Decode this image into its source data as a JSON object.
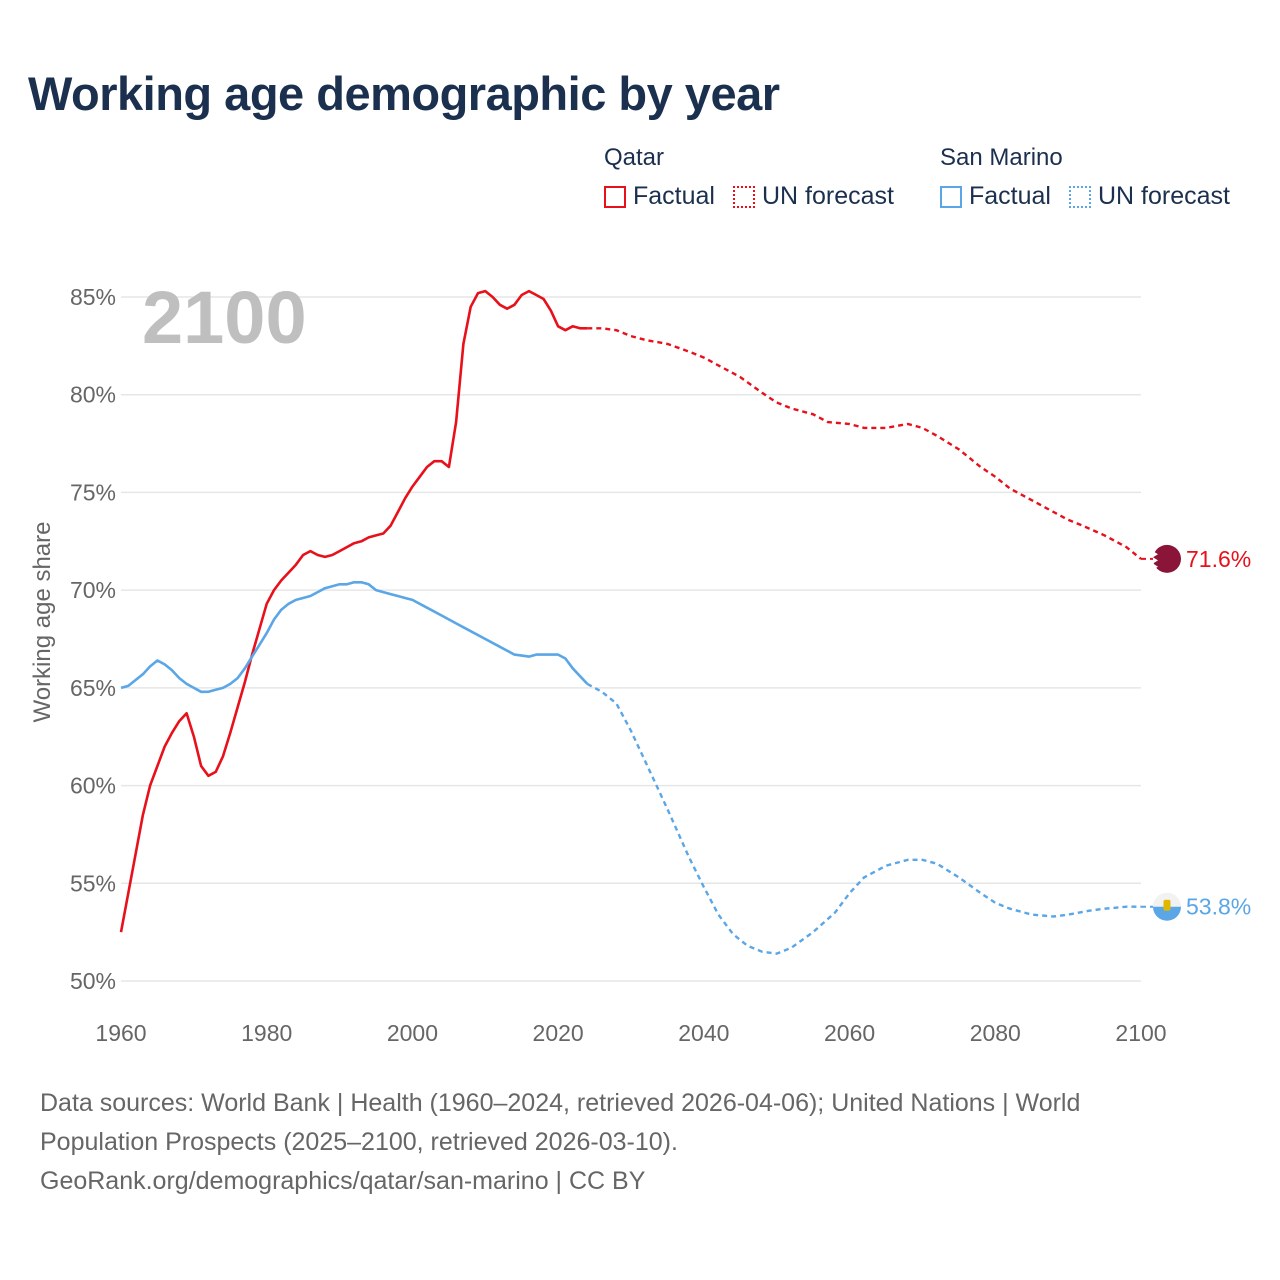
{
  "title": "Working age demographic by year",
  "legend": [
    {
      "country": "Qatar",
      "color": "#e8101a",
      "factual_label": "Factual",
      "forecast_label": "UN forecast"
    },
    {
      "country": "San Marino",
      "color": "#5aa6e6",
      "factual_label": "Factual",
      "forecast_label": "UN forecast"
    }
  ],
  "colors": {
    "qatar": "#e8101a",
    "san_marino": "#5aa6e6",
    "grid": "#e6e6e6",
    "axis_text": "#666666",
    "year_watermark": "#bfbfbf",
    "qatar_flag": "#8a1538"
  },
  "source": {
    "line1": "Data sources: World Bank | Health (1960–2024, retrieved 2026-04-06); United Nations | World",
    "line2": "Population Prospects (2025–2100, retrieved 2026-03-10).",
    "line3": "GeoRank.org/demographics/qatar/san-marino | CC BY"
  },
  "chart_data": {
    "type": "line",
    "title": "Working age demographic by year",
    "current_year_label": "2100",
    "xlabel": "",
    "ylabel": "Working age share",
    "xlim": [
      1960,
      2100
    ],
    "ylim": [
      50,
      85
    ],
    "x_ticks": [
      1960,
      1980,
      2000,
      2020,
      2040,
      2060,
      2080,
      2100
    ],
    "y_ticks": [
      50,
      55,
      60,
      65,
      70,
      75,
      80,
      85
    ],
    "y_tick_labels": [
      "50%",
      "55%",
      "60%",
      "65%",
      "70%",
      "75%",
      "80%",
      "85%"
    ],
    "factual_range": [
      1960,
      2024
    ],
    "forecast_range": [
      2024,
      2100
    ],
    "series": [
      {
        "name": "Qatar",
        "end_label": "71.6%",
        "points": [
          [
            1960,
            52.5
          ],
          [
            1961,
            54.5
          ],
          [
            1962,
            56.5
          ],
          [
            1963,
            58.5
          ],
          [
            1964,
            60.0
          ],
          [
            1965,
            61.0
          ],
          [
            1966,
            62.0
          ],
          [
            1967,
            62.7
          ],
          [
            1968,
            63.3
          ],
          [
            1969,
            63.7
          ],
          [
            1970,
            62.5
          ],
          [
            1971,
            61.0
          ],
          [
            1972,
            60.5
          ],
          [
            1973,
            60.7
          ],
          [
            1974,
            61.5
          ],
          [
            1975,
            62.7
          ],
          [
            1976,
            64.0
          ],
          [
            1977,
            65.3
          ],
          [
            1978,
            66.7
          ],
          [
            1979,
            68.0
          ],
          [
            1980,
            69.3
          ],
          [
            1981,
            70.0
          ],
          [
            1982,
            70.5
          ],
          [
            1983,
            70.9
          ],
          [
            1984,
            71.3
          ],
          [
            1985,
            71.8
          ],
          [
            1986,
            72.0
          ],
          [
            1987,
            71.8
          ],
          [
            1988,
            71.7
          ],
          [
            1989,
            71.8
          ],
          [
            1990,
            72.0
          ],
          [
            1991,
            72.2
          ],
          [
            1992,
            72.4
          ],
          [
            1993,
            72.5
          ],
          [
            1994,
            72.7
          ],
          [
            1995,
            72.8
          ],
          [
            1996,
            72.9
          ],
          [
            1997,
            73.3
          ],
          [
            1998,
            74.0
          ],
          [
            1999,
            74.7
          ],
          [
            2000,
            75.3
          ],
          [
            2001,
            75.8
          ],
          [
            2002,
            76.3
          ],
          [
            2003,
            76.6
          ],
          [
            2004,
            76.6
          ],
          [
            2005,
            76.3
          ],
          [
            2006,
            78.6
          ],
          [
            2007,
            82.6
          ],
          [
            2008,
            84.5
          ],
          [
            2009,
            85.2
          ],
          [
            2010,
            85.3
          ],
          [
            2011,
            85.0
          ],
          [
            2012,
            84.6
          ],
          [
            2013,
            84.4
          ],
          [
            2014,
            84.6
          ],
          [
            2015,
            85.1
          ],
          [
            2016,
            85.3
          ],
          [
            2017,
            85.1
          ],
          [
            2018,
            84.9
          ],
          [
            2019,
            84.3
          ],
          [
            2020,
            83.5
          ],
          [
            2021,
            83.3
          ],
          [
            2022,
            83.5
          ],
          [
            2023,
            83.4
          ],
          [
            2024,
            83.4
          ],
          [
            2026,
            83.4
          ],
          [
            2028,
            83.3
          ],
          [
            2030,
            83.0
          ],
          [
            2032,
            82.8
          ],
          [
            2035,
            82.6
          ],
          [
            2038,
            82.2
          ],
          [
            2040,
            81.9
          ],
          [
            2042,
            81.5
          ],
          [
            2045,
            80.9
          ],
          [
            2048,
            80.1
          ],
          [
            2050,
            79.6
          ],
          [
            2052,
            79.3
          ],
          [
            2055,
            79.0
          ],
          [
            2057,
            78.6
          ],
          [
            2060,
            78.5
          ],
          [
            2062,
            78.3
          ],
          [
            2065,
            78.3
          ],
          [
            2068,
            78.5
          ],
          [
            2070,
            78.3
          ],
          [
            2072,
            77.9
          ],
          [
            2075,
            77.2
          ],
          [
            2078,
            76.3
          ],
          [
            2080,
            75.8
          ],
          [
            2082,
            75.2
          ],
          [
            2085,
            74.6
          ],
          [
            2088,
            74.0
          ],
          [
            2090,
            73.6
          ],
          [
            2092,
            73.3
          ],
          [
            2095,
            72.8
          ],
          [
            2098,
            72.2
          ],
          [
            2100,
            71.6
          ]
        ]
      },
      {
        "name": "San Marino",
        "end_label": "53.8%",
        "points": [
          [
            1960,
            65.0
          ],
          [
            1961,
            65.1
          ],
          [
            1962,
            65.4
          ],
          [
            1963,
            65.7
          ],
          [
            1964,
            66.1
          ],
          [
            1965,
            66.4
          ],
          [
            1966,
            66.2
          ],
          [
            1967,
            65.9
          ],
          [
            1968,
            65.5
          ],
          [
            1969,
            65.2
          ],
          [
            1970,
            65.0
          ],
          [
            1971,
            64.8
          ],
          [
            1972,
            64.8
          ],
          [
            1973,
            64.9
          ],
          [
            1974,
            65.0
          ],
          [
            1975,
            65.2
          ],
          [
            1976,
            65.5
          ],
          [
            1977,
            66.0
          ],
          [
            1978,
            66.6
          ],
          [
            1979,
            67.2
          ],
          [
            1980,
            67.8
          ],
          [
            1981,
            68.5
          ],
          [
            1982,
            69.0
          ],
          [
            1983,
            69.3
          ],
          [
            1984,
            69.5
          ],
          [
            1985,
            69.6
          ],
          [
            1986,
            69.7
          ],
          [
            1987,
            69.9
          ],
          [
            1988,
            70.1
          ],
          [
            1989,
            70.2
          ],
          [
            1990,
            70.3
          ],
          [
            1991,
            70.3
          ],
          [
            1992,
            70.4
          ],
          [
            1993,
            70.4
          ],
          [
            1994,
            70.3
          ],
          [
            1995,
            70.0
          ],
          [
            1996,
            69.9
          ],
          [
            1997,
            69.8
          ],
          [
            1998,
            69.7
          ],
          [
            1999,
            69.6
          ],
          [
            2000,
            69.5
          ],
          [
            2002,
            69.1
          ],
          [
            2004,
            68.7
          ],
          [
            2006,
            68.3
          ],
          [
            2008,
            67.9
          ],
          [
            2010,
            67.5
          ],
          [
            2012,
            67.1
          ],
          [
            2014,
            66.7
          ],
          [
            2016,
            66.6
          ],
          [
            2017,
            66.7
          ],
          [
            2019,
            66.7
          ],
          [
            2020,
            66.7
          ],
          [
            2021,
            66.5
          ],
          [
            2022,
            66.0
          ],
          [
            2023,
            65.6
          ],
          [
            2024,
            65.2
          ],
          [
            2026,
            64.8
          ],
          [
            2028,
            64.2
          ],
          [
            2030,
            62.8
          ],
          [
            2032,
            61.2
          ],
          [
            2035,
            58.8
          ],
          [
            2038,
            56.3
          ],
          [
            2040,
            54.8
          ],
          [
            2042,
            53.4
          ],
          [
            2044,
            52.4
          ],
          [
            2046,
            51.8
          ],
          [
            2048,
            51.5
          ],
          [
            2050,
            51.4
          ],
          [
            2052,
            51.7
          ],
          [
            2055,
            52.5
          ],
          [
            2058,
            53.5
          ],
          [
            2060,
            54.5
          ],
          [
            2062,
            55.3
          ],
          [
            2065,
            55.9
          ],
          [
            2068,
            56.2
          ],
          [
            2070,
            56.2
          ],
          [
            2072,
            56.0
          ],
          [
            2075,
            55.3
          ],
          [
            2078,
            54.5
          ],
          [
            2080,
            54.0
          ],
          [
            2082,
            53.7
          ],
          [
            2085,
            53.4
          ],
          [
            2088,
            53.3
          ],
          [
            2090,
            53.4
          ],
          [
            2093,
            53.6
          ],
          [
            2095,
            53.7
          ],
          [
            2098,
            53.8
          ],
          [
            2100,
            53.8
          ]
        ]
      }
    ]
  }
}
